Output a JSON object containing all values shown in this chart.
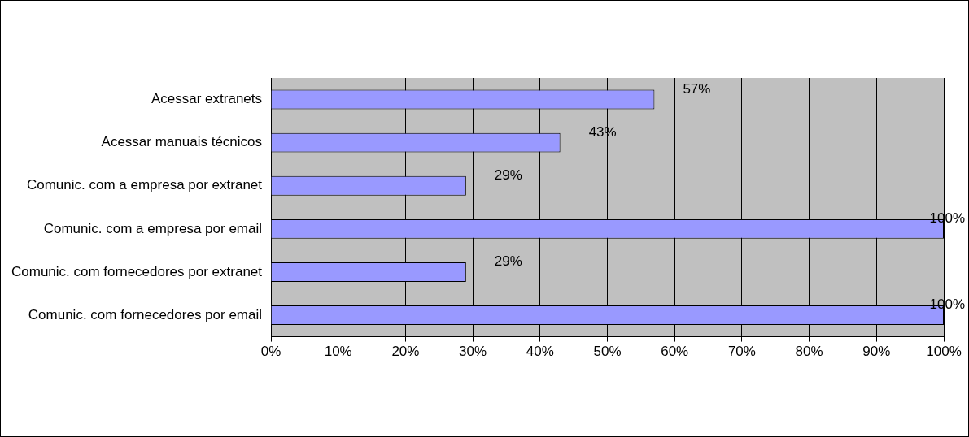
{
  "chart_data": {
    "type": "bar",
    "orientation": "horizontal",
    "categories": [
      "Acessar extranets",
      "Acessar manuais técnicos",
      "Comunic. com a empresa por extranet",
      "Comunic. com a empresa por email",
      "Comunic. com fornecedores por extranet",
      "Comunic. com fornecedores por email"
    ],
    "values": [
      57,
      43,
      29,
      100,
      29,
      100
    ],
    "value_labels": [
      "57%",
      "43%",
      "29%",
      "100%",
      "29%",
      "100%"
    ],
    "color": "#9999ff",
    "xlim": [
      0,
      100
    ],
    "xticks": [
      {
        "value": 0,
        "label": "0%"
      },
      {
        "value": 10,
        "label": "10%"
      },
      {
        "value": 20,
        "label": "20%"
      },
      {
        "value": 30,
        "label": "30%"
      },
      {
        "value": 40,
        "label": "40%"
      },
      {
        "value": 50,
        "label": "50%"
      },
      {
        "value": 60,
        "label": "60%"
      },
      {
        "value": 70,
        "label": "70%"
      },
      {
        "value": 80,
        "label": "80%"
      },
      {
        "value": 90,
        "label": "90%"
      },
      {
        "value": 100,
        "label": "100%"
      }
    ],
    "grid": "x",
    "legend": false
  }
}
